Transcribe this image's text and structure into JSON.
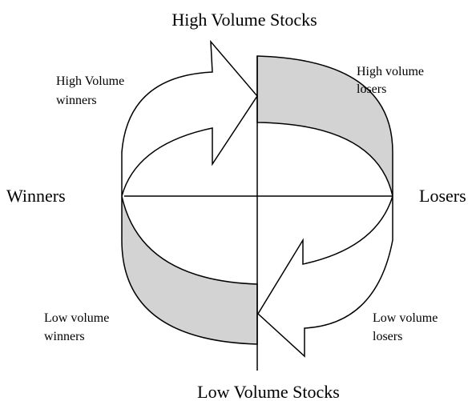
{
  "title": "High Volume Stocks",
  "bottom_label": "Low Volume Stocks",
  "left_label": "Winners",
  "right_label": "Losers",
  "quadrants": [
    {
      "lines": [
        "High Volume",
        "winners"
      ]
    },
    {
      "lines": [
        "High volume",
        "losers"
      ]
    },
    {
      "lines": [
        "Low volume",
        "winners"
      ]
    },
    {
      "lines": [
        "Low volume",
        "losers"
      ]
    }
  ]
}
